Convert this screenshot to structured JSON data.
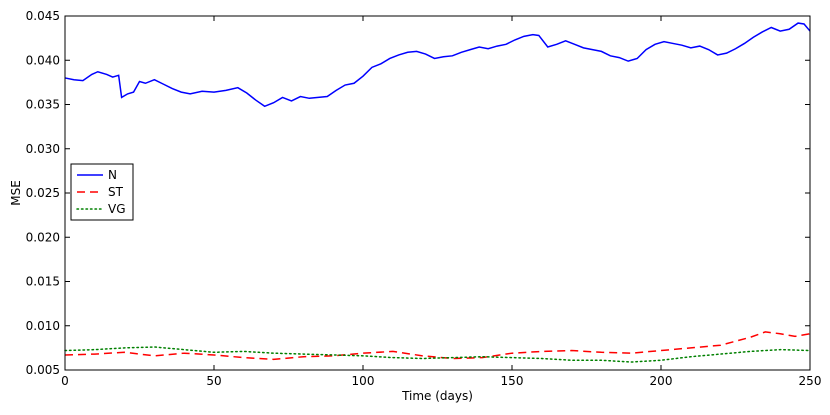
{
  "chart_data": {
    "type": "line",
    "xlabel": "Time (days)",
    "ylabel": "MSE",
    "xlim": [
      0,
      250
    ],
    "ylim": [
      0.005,
      0.045
    ],
    "x_ticks": [
      0,
      50,
      100,
      150,
      200,
      250
    ],
    "y_ticks": [
      0.005,
      0.01,
      0.015,
      0.02,
      0.025,
      0.03,
      0.035,
      0.04,
      0.045
    ],
    "x_tick_labels": [
      "0",
      "50",
      "100",
      "150",
      "200",
      "250"
    ],
    "y_tick_labels": [
      "0.005",
      "0.010",
      "0.015",
      "0.020",
      "0.025",
      "0.030",
      "0.035",
      "0.040",
      "0.045"
    ],
    "grid": false,
    "legend_position": "center-left",
    "series": [
      {
        "name": "N",
        "color": "#0000ff",
        "style": "solid",
        "x": [
          0,
          3,
          6,
          9,
          11,
          14,
          16,
          18,
          19,
          21,
          23,
          25,
          27,
          30,
          33,
          36,
          39,
          42,
          46,
          50,
          54,
          58,
          61,
          64,
          67,
          70,
          73,
          76,
          79,
          82,
          85,
          88,
          91,
          94,
          97,
          100,
          103,
          106,
          109,
          112,
          115,
          118,
          121,
          124,
          127,
          130,
          133,
          136,
          139,
          142,
          145,
          148,
          151,
          154,
          157,
          159,
          162,
          165,
          168,
          171,
          174,
          177,
          180,
          183,
          186,
          189,
          192,
          195,
          198,
          201,
          204,
          207,
          210,
          213,
          216,
          219,
          222,
          225,
          228,
          231,
          234,
          237,
          240,
          243,
          246,
          248,
          250
        ],
        "values": [
          0.038,
          0.0378,
          0.0377,
          0.0384,
          0.0387,
          0.0384,
          0.0381,
          0.0383,
          0.0358,
          0.0362,
          0.0364,
          0.0376,
          0.0374,
          0.0378,
          0.0373,
          0.0368,
          0.0364,
          0.0362,
          0.0365,
          0.0364,
          0.0366,
          0.0369,
          0.0363,
          0.0355,
          0.0348,
          0.0352,
          0.0358,
          0.0354,
          0.0359,
          0.0357,
          0.0358,
          0.0359,
          0.0366,
          0.0372,
          0.0374,
          0.0382,
          0.0392,
          0.0396,
          0.0402,
          0.0406,
          0.0409,
          0.041,
          0.0407,
          0.0402,
          0.0404,
          0.0405,
          0.0409,
          0.0412,
          0.0415,
          0.0413,
          0.0416,
          0.0418,
          0.0423,
          0.0427,
          0.0429,
          0.0428,
          0.0415,
          0.0418,
          0.0422,
          0.0418,
          0.0414,
          0.0412,
          0.041,
          0.0405,
          0.0403,
          0.0399,
          0.0402,
          0.0412,
          0.0418,
          0.0421,
          0.0419,
          0.0417,
          0.0414,
          0.0416,
          0.0412,
          0.0406,
          0.0408,
          0.0413,
          0.0419,
          0.0426,
          0.0432,
          0.0437,
          0.0433,
          0.0435,
          0.0442,
          0.0441,
          0.0433
        ]
      },
      {
        "name": "ST",
        "color": "#ff0000",
        "style": "dashed",
        "x": [
          0,
          10,
          20,
          30,
          40,
          50,
          60,
          70,
          80,
          90,
          100,
          110,
          120,
          130,
          140,
          150,
          160,
          170,
          180,
          190,
          200,
          210,
          220,
          230,
          235,
          240,
          245,
          250
        ],
        "values": [
          0.0067,
          0.0068,
          0.007,
          0.0066,
          0.0069,
          0.0067,
          0.0064,
          0.0062,
          0.0065,
          0.0066,
          0.0069,
          0.0071,
          0.0066,
          0.0063,
          0.0064,
          0.0069,
          0.0071,
          0.0072,
          0.007,
          0.0069,
          0.0072,
          0.0075,
          0.0078,
          0.0087,
          0.0093,
          0.0091,
          0.0088,
          0.0091
        ]
      },
      {
        "name": "VG",
        "color": "#008000",
        "style": "dotted",
        "x": [
          0,
          10,
          20,
          30,
          40,
          50,
          60,
          70,
          80,
          90,
          100,
          110,
          120,
          130,
          140,
          150,
          160,
          170,
          180,
          190,
          200,
          210,
          220,
          230,
          240,
          250
        ],
        "values": [
          0.0072,
          0.0073,
          0.0075,
          0.0076,
          0.0073,
          0.007,
          0.0071,
          0.0069,
          0.0068,
          0.0067,
          0.0066,
          0.0064,
          0.0063,
          0.0064,
          0.0065,
          0.0064,
          0.0063,
          0.0061,
          0.0061,
          0.0059,
          0.0061,
          0.0065,
          0.0068,
          0.0071,
          0.0073,
          0.0072
        ]
      }
    ]
  }
}
